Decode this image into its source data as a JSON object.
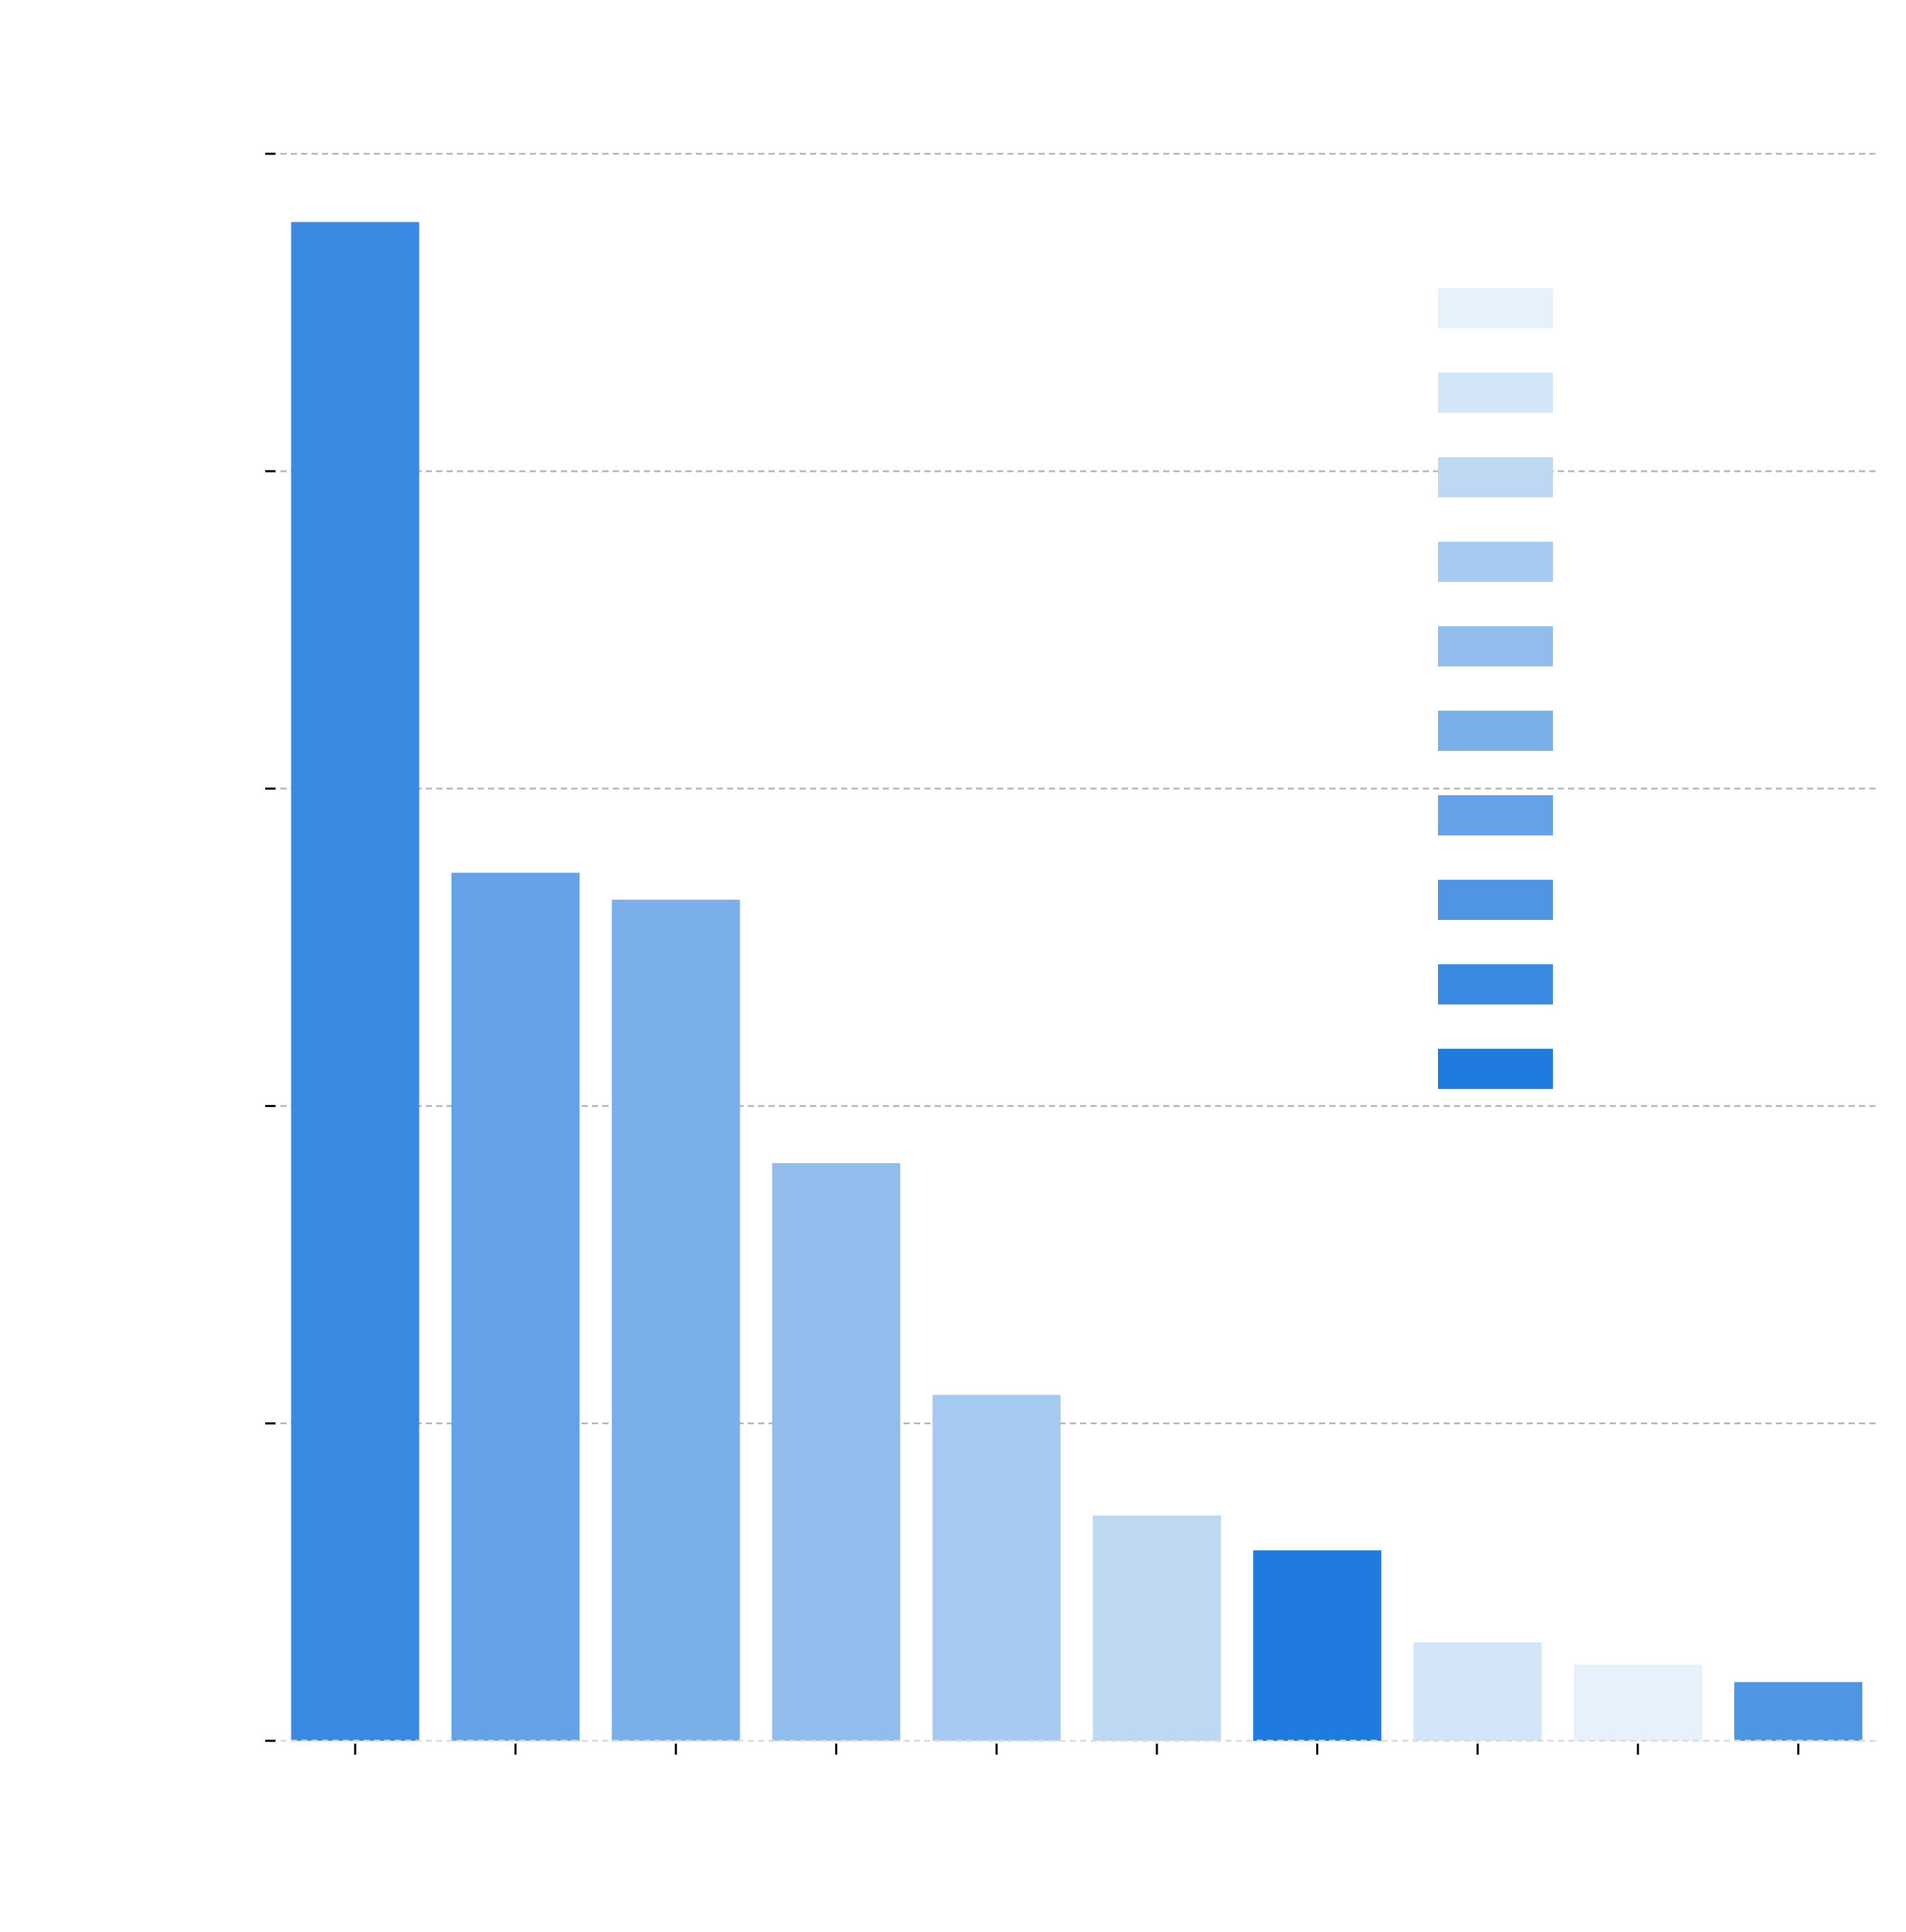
{
  "chart_data": {
    "type": "bar",
    "title": "",
    "xlabel": "",
    "ylabel": "",
    "ylim": [
      0,
      10
    ],
    "yticks": [
      0,
      2,
      4,
      6,
      8,
      10
    ],
    "grid": true,
    "legend_position": "top-right",
    "categories": [
      "",
      "",
      "",
      "",
      "",
      "",
      "",
      "",
      "",
      ""
    ],
    "values": [
      9.57,
      5.47,
      5.3,
      3.64,
      2.18,
      1.42,
      1.2,
      0.62,
      0.48,
      0.37
    ],
    "bar_colors": [
      "#3a89e2",
      "#64a2e7",
      "#7aafea",
      "#91bcee",
      "#a6caf1",
      "#bed8f4",
      "#1f7bdf",
      "#d3e5f8",
      "#e7f1fb",
      "#4e95e4"
    ],
    "legend_colors": [
      "#e7f1fb",
      "#d3e5f8",
      "#bed8f4",
      "#a6caf1",
      "#91bcee",
      "#7aafea",
      "#64a2e7",
      "#4e95e4",
      "#3a89e2",
      "#1f7bdf"
    ]
  }
}
